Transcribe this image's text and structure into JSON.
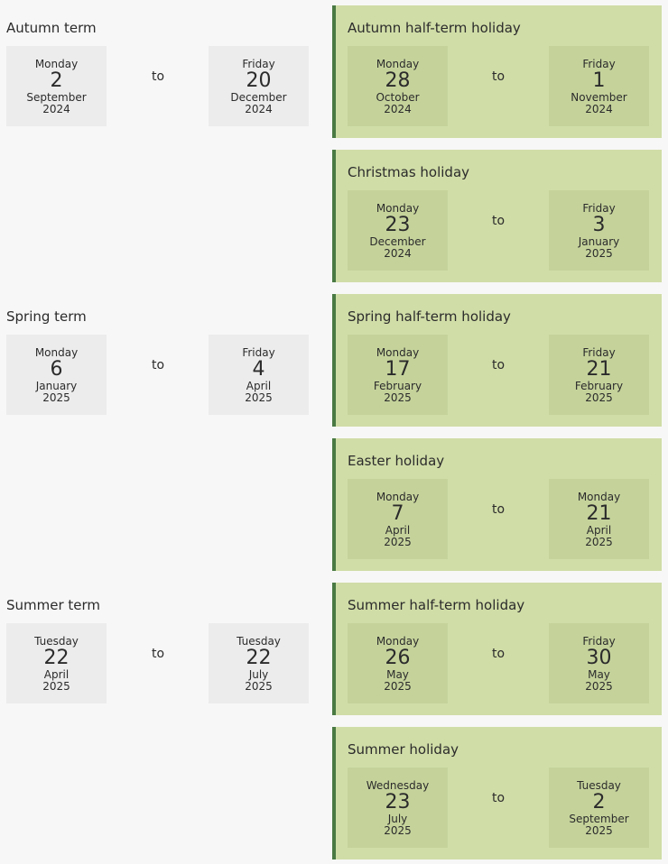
{
  "connector": "to",
  "colors": {
    "page_bg": "#f7f7f7",
    "term_date_bg": "#ececec",
    "holiday_bg": "#d0dda7",
    "holiday_date_bg": "#c5d39b",
    "holiday_border": "#4a7a44"
  },
  "terms": [
    {
      "title": "Autumn term",
      "start": {
        "dow": "Monday",
        "day": "2",
        "month": "September",
        "year": "2024"
      },
      "end": {
        "dow": "Friday",
        "day": "20",
        "month": "December",
        "year": "2024"
      }
    },
    {
      "title": "Spring term",
      "start": {
        "dow": "Monday",
        "day": "6",
        "month": "January",
        "year": "2025"
      },
      "end": {
        "dow": "Friday",
        "day": "4",
        "month": "April",
        "year": "2025"
      }
    },
    {
      "title": "Summer term",
      "start": {
        "dow": "Tuesday",
        "day": "22",
        "month": "April",
        "year": "2025"
      },
      "end": {
        "dow": "Tuesday",
        "day": "22",
        "month": "July",
        "year": "2025"
      }
    }
  ],
  "holidays": [
    {
      "title": "Autumn half-term holiday",
      "start": {
        "dow": "Monday",
        "day": "28",
        "month": "October",
        "year": "2024"
      },
      "end": {
        "dow": "Friday",
        "day": "1",
        "month": "November",
        "year": "2024"
      }
    },
    {
      "title": "Christmas holiday",
      "start": {
        "dow": "Monday",
        "day": "23",
        "month": "December",
        "year": "2024"
      },
      "end": {
        "dow": "Friday",
        "day": "3",
        "month": "January",
        "year": "2025"
      }
    },
    {
      "title": "Spring half-term holiday",
      "start": {
        "dow": "Monday",
        "day": "17",
        "month": "February",
        "year": "2025"
      },
      "end": {
        "dow": "Friday",
        "day": "21",
        "month": "February",
        "year": "2025"
      }
    },
    {
      "title": "Easter holiday",
      "start": {
        "dow": "Monday",
        "day": "7",
        "month": "April",
        "year": "2025"
      },
      "end": {
        "dow": "Monday",
        "day": "21",
        "month": "April",
        "year": "2025"
      }
    },
    {
      "title": "Summer half-term holiday",
      "start": {
        "dow": "Monday",
        "day": "26",
        "month": "May",
        "year": "2025"
      },
      "end": {
        "dow": "Friday",
        "day": "30",
        "month": "May",
        "year": "2025"
      }
    },
    {
      "title": "Summer holiday",
      "start": {
        "dow": "Wednesday",
        "day": "23",
        "month": "July",
        "year": "2025"
      },
      "end": {
        "dow": "Tuesday",
        "day": "2",
        "month": "September",
        "year": "2025"
      }
    }
  ]
}
